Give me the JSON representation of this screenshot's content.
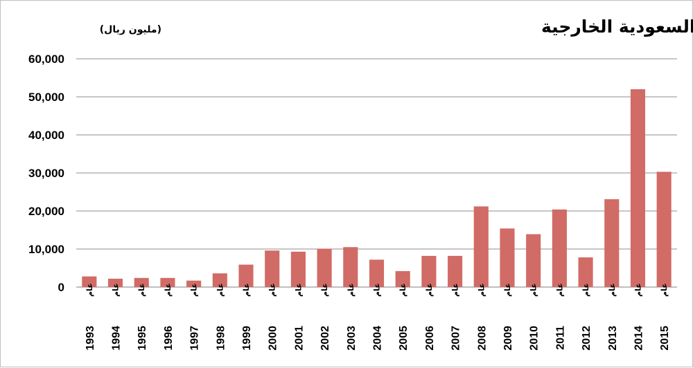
{
  "chart_data": {
    "type": "bar",
    "title": "إجمالي مساعدات السعودية الخارجية",
    "subtitle": "(مليون ريال)",
    "category_prefix": "عام",
    "categories": [
      "1993",
      "1994",
      "1995",
      "1996",
      "1997",
      "1998",
      "1999",
      "2000",
      "2001",
      "2002",
      "2003",
      "2004",
      "2005",
      "2006",
      "2007",
      "2008",
      "2009",
      "2010",
      "2011",
      "2012",
      "2013",
      "2014",
      "2015"
    ],
    "values": [
      2800,
      2200,
      2400,
      2400,
      1700,
      3600,
      5900,
      9600,
      9300,
      10100,
      10500,
      7200,
      4200,
      8200,
      8200,
      21200,
      15400,
      13900,
      20400,
      7800,
      23100,
      52000,
      30300
    ],
    "ylim": [
      0,
      60000
    ],
    "yticks": [
      "0",
      "10,000",
      "20,000",
      "30,000",
      "40,000",
      "50,000",
      "60,000"
    ],
    "ytick_values": [
      0,
      10000,
      20000,
      30000,
      40000,
      50000,
      60000
    ],
    "bar_color": "#d16b66",
    "grid": true,
    "xlabel": "",
    "ylabel": ""
  }
}
